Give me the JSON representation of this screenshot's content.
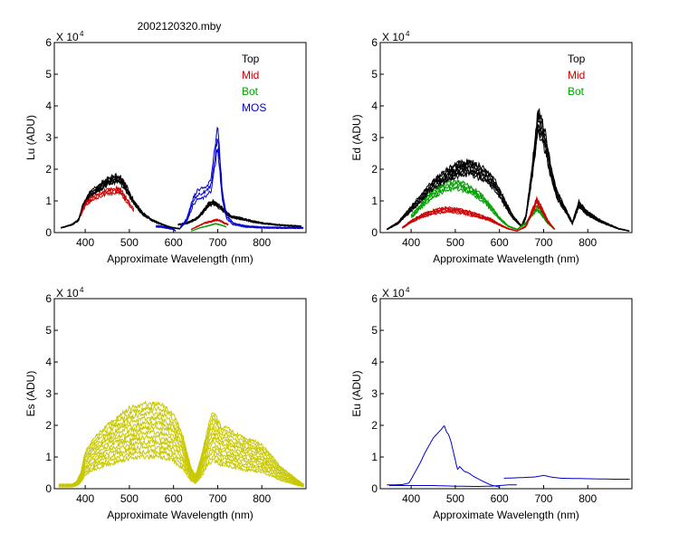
{
  "figure_title": "2002120320.mby",
  "chart_data": [
    {
      "type": "line",
      "panel": "top-left",
      "ylabel": "Lu (ADU)",
      "xlabel": "Approximate Wavelength (nm)",
      "xlim": [
        330,
        900
      ],
      "ylim": [
        0,
        6
      ],
      "y_multiplier": "X 10",
      "y_exponent": "4",
      "xticks": [
        400,
        500,
        600,
        700,
        800
      ],
      "yticks": [
        0,
        1,
        2,
        3,
        4,
        5,
        6
      ],
      "legend": [
        {
          "label": "Top",
          "color": "#000000"
        },
        {
          "label": "Mid",
          "color": "#cc0000"
        },
        {
          "label": "Bot",
          "color": "#00a000"
        },
        {
          "label": "MOS",
          "color": "#0000cc"
        }
      ],
      "series": [
        {
          "name": "Top",
          "color": "#000000",
          "count": 6,
          "spread": 0.06,
          "segments": [
            {
              "x": [
                345,
                370,
                385,
                395,
                410,
                430,
                450,
                470,
                480,
                495,
                510,
                530,
                550,
                570,
                590,
                600,
                615
              ],
              "y": [
                0.15,
                0.25,
                0.4,
                0.85,
                1.2,
                1.4,
                1.6,
                1.72,
                1.65,
                1.35,
                0.95,
                0.6,
                0.4,
                0.28,
                0.18,
                0.15,
                0.12
              ]
            },
            {
              "x": [
                610,
                630,
                650,
                660,
                670,
                680,
                690,
                700,
                710,
                730,
                750,
                780,
                800,
                830,
                860,
                890
              ],
              "y": [
                0.25,
                0.3,
                0.42,
                0.55,
                0.7,
                0.9,
                0.95,
                0.85,
                0.75,
                0.5,
                0.45,
                0.35,
                0.3,
                0.25,
                0.22,
                0.2
              ]
            }
          ]
        },
        {
          "name": "Mid",
          "color": "#cc0000",
          "count": 3,
          "spread": 0.05,
          "segments": [
            {
              "x": [
                390,
                400,
                420,
                440,
                460,
                470,
                480,
                490,
                500,
                510
              ],
              "y": [
                0.55,
                0.9,
                1.1,
                1.25,
                1.3,
                1.35,
                1.3,
                1.1,
                0.9,
                0.7
              ]
            },
            {
              "x": [
                640,
                655,
                670,
                685,
                695,
                705,
                715,
                725
              ],
              "y": [
                0.1,
                0.2,
                0.3,
                0.35,
                0.4,
                0.38,
                0.3,
                0.25
              ]
            }
          ]
        },
        {
          "name": "Bot",
          "color": "#00a000",
          "count": 2,
          "spread": 0.04,
          "segments": [
            {
              "x": [
                640,
                660,
                680,
                695,
                705,
                720
              ],
              "y": [
                0.05,
                0.15,
                0.22,
                0.28,
                0.25,
                0.18
              ]
            }
          ]
        },
        {
          "name": "MOS",
          "color": "#0000cc",
          "count": 3,
          "spread": 0.12,
          "segments": [
            {
              "x": [
                560,
                575,
                585,
                595,
                600,
                605
              ],
              "y": [
                0.2,
                0.18,
                0.15,
                0.12,
                0.1,
                0.05
              ]
            },
            {
              "x": [
                615,
                630,
                645,
                655,
                665,
                675,
                685,
                690,
                697,
                700,
                705,
                710,
                720,
                735,
                760,
                800,
                850,
                895
              ],
              "y": [
                0.15,
                0.4,
                1.0,
                1.2,
                1.25,
                1.3,
                1.5,
                2.0,
                2.8,
                3.0,
                2.2,
                1.2,
                0.5,
                0.28,
                0.2,
                0.16,
                0.15,
                0.15
              ]
            }
          ]
        }
      ]
    },
    {
      "type": "line",
      "panel": "top-right",
      "ylabel": "Ed (ADU)",
      "xlabel": "Approximate Wavelength (nm)",
      "xlim": [
        330,
        900
      ],
      "ylim": [
        0,
        6
      ],
      "y_multiplier": "X 10",
      "y_exponent": "4",
      "xticks": [
        400,
        500,
        600,
        700,
        800
      ],
      "yticks": [
        0,
        1,
        2,
        3,
        4,
        5,
        6
      ],
      "legend": [
        {
          "label": "Top",
          "color": "#000000"
        },
        {
          "label": "Mid",
          "color": "#cc0000"
        },
        {
          "label": "Bot",
          "color": "#00a000"
        }
      ],
      "series": [
        {
          "name": "Top",
          "color": "#000000",
          "count": 7,
          "spread": 0.1,
          "segments": [
            {
              "x": [
                345,
                370,
                390,
                410,
                430,
                450,
                470,
                490,
                510,
                530,
                550,
                570,
                590,
                610,
                630,
                650,
                660,
                670,
                680,
                687,
                695,
                705,
                715,
                730,
                750,
                765,
                780,
                800,
                830,
                870,
                895
              ],
              "y": [
                0.1,
                0.3,
                0.6,
                0.9,
                1.2,
                1.5,
                1.7,
                1.9,
                2.0,
                2.05,
                1.95,
                1.8,
                1.5,
                1.0,
                0.5,
                0.2,
                0.5,
                1.5,
                2.6,
                3.5,
                3.3,
                2.8,
                2.0,
                1.2,
                0.7,
                0.3,
                0.9,
                0.6,
                0.35,
                0.12,
                0.05
              ]
            }
          ]
        },
        {
          "name": "Bot",
          "color": "#00a000",
          "count": 4,
          "spread": 0.08,
          "segments": [
            {
              "x": [
                400,
                420,
                440,
                460,
                480,
                500,
                520,
                540,
                560,
                580,
                600,
                620,
                640,
                660,
                675,
                685,
                695,
                710,
                725
              ],
              "y": [
                0.5,
                0.8,
                1.1,
                1.3,
                1.45,
                1.5,
                1.45,
                1.3,
                1.1,
                0.8,
                0.45,
                0.2,
                0.1,
                0.3,
                0.6,
                0.75,
                0.6,
                0.3,
                0.1
              ]
            }
          ]
        },
        {
          "name": "Mid",
          "color": "#cc0000",
          "count": 5,
          "spread": 0.1,
          "segments": [
            {
              "x": [
                380,
                400,
                420,
                440,
                460,
                480,
                500,
                520,
                540,
                560,
                580,
                600,
                620,
                640,
                660,
                675,
                685,
                695,
                710,
                725
              ],
              "y": [
                0.15,
                0.35,
                0.5,
                0.6,
                0.68,
                0.72,
                0.7,
                0.65,
                0.58,
                0.5,
                0.4,
                0.25,
                0.12,
                0.05,
                0.2,
                0.7,
                1.0,
                0.75,
                0.35,
                0.1
              ]
            }
          ]
        }
      ]
    },
    {
      "type": "line",
      "panel": "bottom-left",
      "ylabel": "Es (ADU)",
      "xlabel": "Approximate Wavelength (nm)",
      "xlim": [
        330,
        900
      ],
      "ylim": [
        0,
        6
      ],
      "y_multiplier": "X 10",
      "y_exponent": "4",
      "xticks": [
        400,
        500,
        600,
        700,
        800
      ],
      "yticks": [
        0,
        1,
        2,
        3,
        4,
        5,
        6
      ],
      "legend": [],
      "series": [
        {
          "name": "Es",
          "color": "#c8c800",
          "count": 12,
          "spread": 0.45,
          "segments": [
            {
              "x": [
                340,
                355,
                370,
                380,
                390,
                400,
                420,
                440,
                460,
                480,
                500,
                520,
                540,
                560,
                580,
                600,
                620,
                630,
                640,
                650,
                660,
                670,
                680,
                690,
                700,
                710,
                720,
                740,
                760,
                780,
                800,
                820,
                840,
                860,
                880,
                895
              ],
              "y": [
                0.1,
                0.1,
                0.1,
                0.15,
                0.35,
                0.8,
                1.1,
                1.3,
                1.45,
                1.6,
                1.75,
                1.8,
                1.85,
                1.85,
                1.8,
                1.6,
                1.2,
                0.8,
                0.45,
                0.3,
                0.6,
                1.0,
                1.4,
                1.7,
                1.5,
                1.3,
                1.35,
                1.2,
                1.1,
                1.05,
                0.95,
                0.75,
                0.5,
                0.35,
                0.2,
                0.1
              ]
            }
          ]
        }
      ]
    },
    {
      "type": "line",
      "panel": "bottom-right",
      "ylabel": "Eu (ADU)",
      "xlabel": "Approximate Wavelength (nm)",
      "xlim": [
        330,
        900
      ],
      "ylim": [
        0,
        6
      ],
      "y_multiplier": "X 10",
      "y_exponent": "4",
      "xticks": [
        400,
        500,
        600,
        700,
        800
      ],
      "yticks": [
        0,
        1,
        2,
        3,
        4,
        5,
        6
      ],
      "legend": [],
      "series": [
        {
          "name": "Eu",
          "color": "#0000cc",
          "count": 1,
          "spread": 0,
          "segments": [
            {
              "x": [
                345,
                360,
                380,
                395,
                400,
                410,
                420,
                430,
                440,
                450,
                460,
                470,
                475,
                480,
                485,
                490,
                495,
                500,
                505,
                510,
                520,
                530,
                540,
                560,
                580,
                600
              ],
              "y": [
                0.12,
                0.12,
                0.13,
                0.18,
                0.3,
                0.55,
                0.8,
                1.1,
                1.35,
                1.6,
                1.75,
                1.9,
                2.0,
                1.8,
                1.7,
                1.5,
                1.2,
                0.9,
                0.6,
                0.7,
                0.55,
                0.5,
                0.4,
                0.25,
                0.12,
                0.05
              ]
            },
            {
              "x": [
                350,
                400,
                450,
                500,
                550,
                580,
                600,
                620,
                640
              ],
              "y": [
                0.1,
                0.1,
                0.1,
                0.08,
                0.07,
                0.08,
                0.1,
                0.12,
                0.12
              ]
            },
            {
              "x": [
                610,
                650,
                680,
                700,
                720,
                740,
                780,
                820,
                860,
                895
              ],
              "y": [
                0.33,
                0.35,
                0.37,
                0.42,
                0.36,
                0.33,
                0.32,
                0.31,
                0.3,
                0.3
              ]
            }
          ]
        }
      ]
    }
  ]
}
